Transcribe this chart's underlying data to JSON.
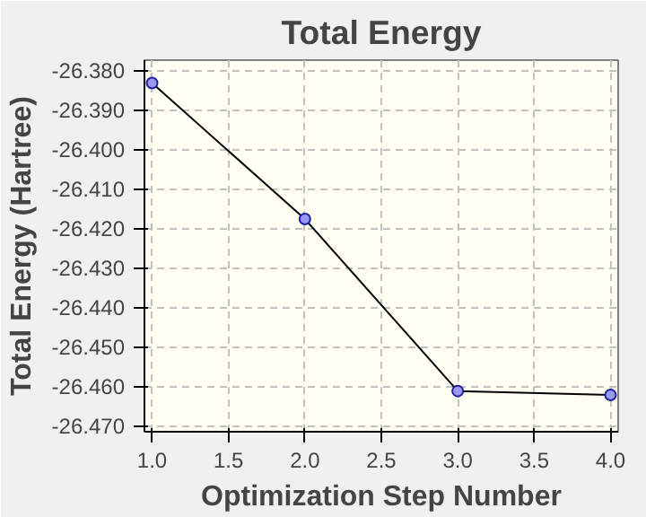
{
  "chart_data": {
    "type": "line",
    "title": "Total Energy",
    "xlabel": "Optimization Step Number",
    "ylabel": "Total Energy (Hartree)",
    "x": [
      1,
      2,
      3,
      4
    ],
    "series": [
      {
        "color": "#000000",
        "values": [
          -26.3833,
          -26.4177,
          -26.4612,
          -26.4622
        ]
      }
    ],
    "xlim": [
      0.95,
      4.05
    ],
    "ylim": [
      -26.4715,
      -26.3775
    ],
    "xticks": [
      {
        "value": 1,
        "label": "1.0"
      },
      {
        "value": 1.5,
        "label": "1.5"
      },
      {
        "value": 2,
        "label": "2.0"
      },
      {
        "value": 2.5,
        "label": "2.5"
      },
      {
        "value": 3,
        "label": "3.0"
      },
      {
        "value": 3.5,
        "label": "3.5"
      },
      {
        "value": 4,
        "label": "4.0"
      }
    ],
    "yticks": [
      {
        "value": -26.38,
        "label": "-26.380"
      },
      {
        "value": -26.39,
        "label": "-26.390"
      },
      {
        "value": -26.4,
        "label": "-26.400"
      },
      {
        "value": -26.41,
        "label": "-26.410"
      },
      {
        "value": -26.42,
        "label": "-26.420"
      },
      {
        "value": -26.43,
        "label": "-26.430"
      },
      {
        "value": -26.44,
        "label": "-26.440"
      },
      {
        "value": -26.45,
        "label": "-26.450"
      },
      {
        "value": -26.46,
        "label": "-26.460"
      },
      {
        "value": -26.47,
        "label": "-26.470"
      }
    ],
    "grid": true,
    "marker": "circle",
    "line_style": "solid"
  }
}
